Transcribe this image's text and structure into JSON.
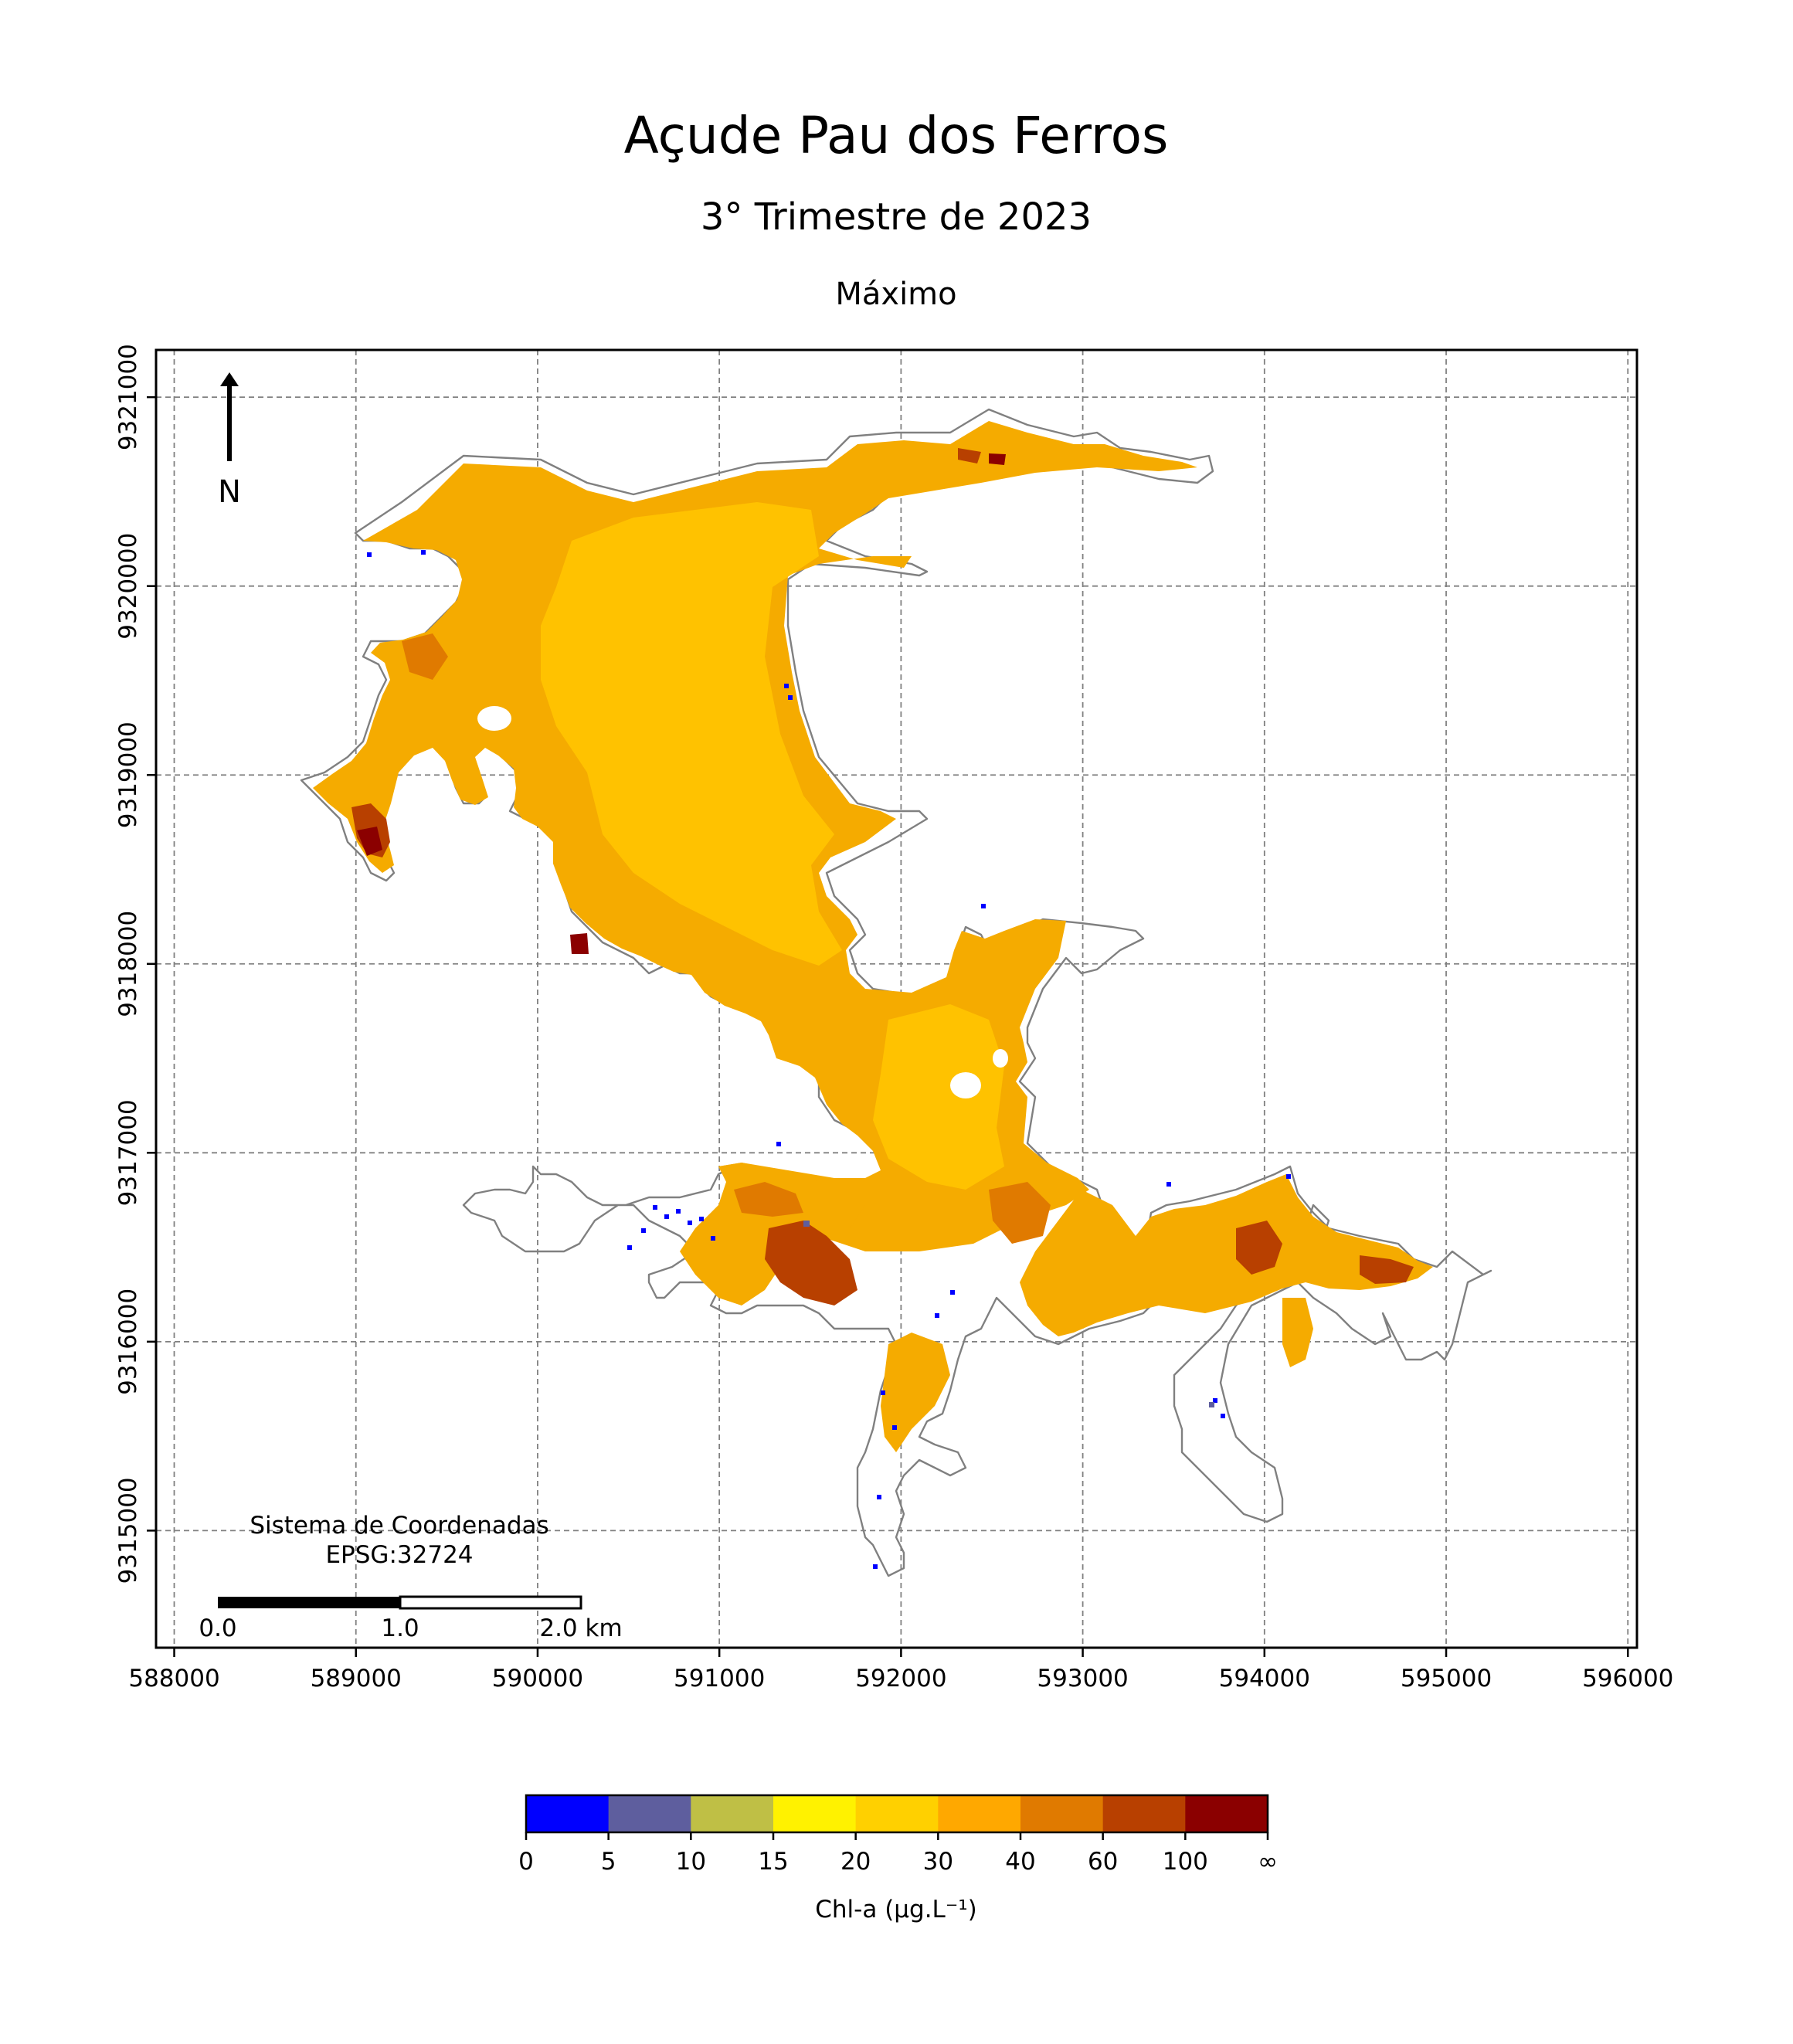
{
  "title": "Açude Pau dos Ferros",
  "subtitle": "3° Trimestre de 2023",
  "statistic": "Máximo",
  "map": {
    "crs_label": "Sistema de Coordenadas",
    "crs_code": "EPSG:32724",
    "north_label": "N",
    "x_ticks": [
      588000,
      589000,
      590000,
      591000,
      592000,
      593000,
      594000,
      595000,
      596000
    ],
    "y_ticks": [
      9315000,
      9316000,
      9317000,
      9318000,
      9319000,
      9320000,
      9321000
    ],
    "x_range": [
      587900,
      596050
    ],
    "y_range": [
      9314380,
      9321250
    ],
    "grid": true,
    "scale_bar": {
      "labels": [
        "0.0",
        "1.0",
        "2.0 km"
      ]
    }
  },
  "chart_data": {
    "type": "heatmap",
    "title": "Açude Pau dos Ferros",
    "subtitle": "3° Trimestre de 2023",
    "panel": "Máximo",
    "xlabel": "",
    "ylabel": "",
    "xlim": [
      587900,
      596050
    ],
    "ylim": [
      9314380,
      9321250
    ],
    "grid": true,
    "colorbar": {
      "label": "Chl-a (μg.L⁻¹)",
      "tick_labels": [
        "0",
        "5",
        "10",
        "15",
        "20",
        "30",
        "40",
        "60",
        "100",
        "∞"
      ],
      "colors": [
        "#0000ff",
        "#5e5e9e",
        "#bfbf45",
        "#fff200",
        "#ffd000",
        "#ffa800",
        "#e07a00",
        "#b84000",
        "#8b0000"
      ]
    },
    "dominant_class": "30-40",
    "high_classes_locations": [
      "western arm near 589000, 9318500",
      "eastern tip near 592600, 9320650"
    ]
  }
}
